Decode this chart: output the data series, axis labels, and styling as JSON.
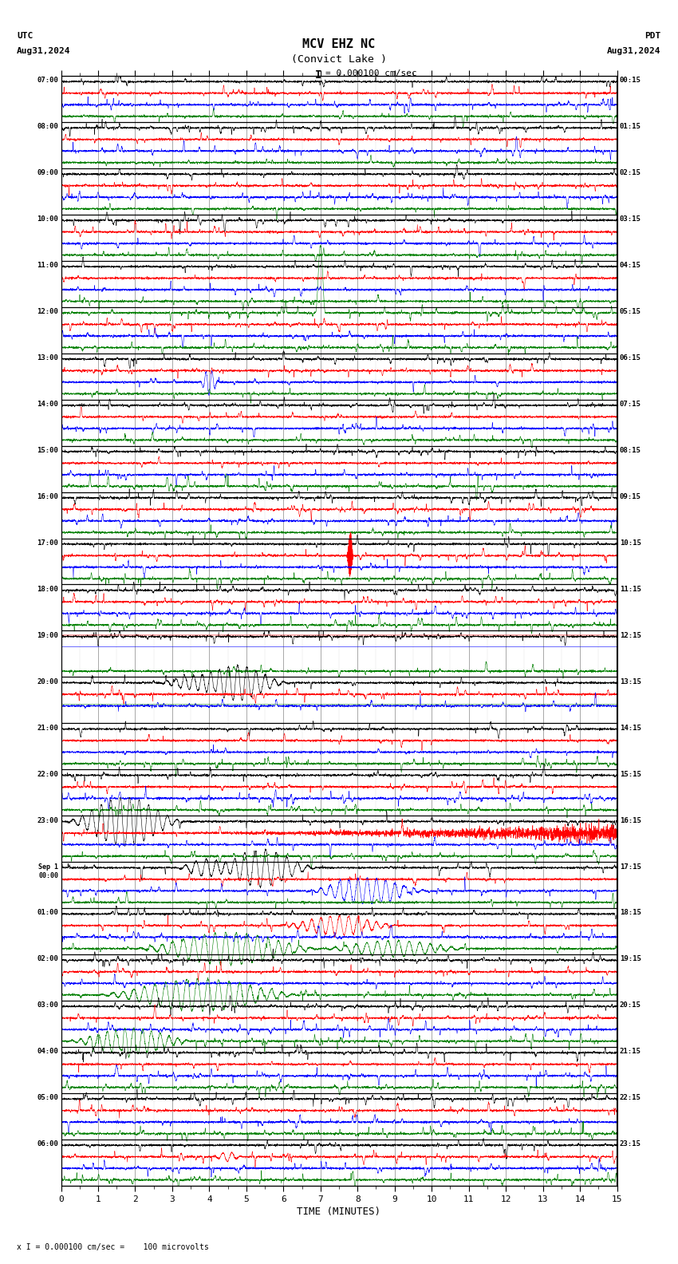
{
  "title_line1": "MCV EHZ NC",
  "title_line2": "(Convict Lake )",
  "scale_label": "= 0.000100 cm/sec",
  "scale_bar_label": "I",
  "utc_label": "UTC",
  "utc_date": "Aug31,2024",
  "pdt_label": "PDT",
  "pdt_date": "Aug31,2024",
  "bottom_note": "x I = 0.000100 cm/sec =    100 microvolts",
  "xlabel": "TIME (MINUTES)",
  "xticks": [
    0,
    1,
    2,
    3,
    4,
    5,
    6,
    7,
    8,
    9,
    10,
    11,
    12,
    13,
    14,
    15
  ],
  "left_times": [
    "07:00",
    "08:00",
    "09:00",
    "10:00",
    "11:00",
    "12:00",
    "13:00",
    "14:00",
    "15:00",
    "16:00",
    "17:00",
    "18:00",
    "19:00",
    "20:00",
    "21:00",
    "22:00",
    "23:00",
    "Sep 1\n00:00",
    "01:00",
    "02:00",
    "03:00",
    "04:00",
    "05:00",
    "06:00"
  ],
  "right_times": [
    "00:15",
    "01:15",
    "02:15",
    "03:15",
    "04:15",
    "05:15",
    "06:15",
    "07:15",
    "08:15",
    "09:15",
    "10:15",
    "11:15",
    "12:15",
    "13:15",
    "14:15",
    "15:15",
    "16:15",
    "17:15",
    "18:15",
    "19:15",
    "20:15",
    "21:15",
    "22:15",
    "23:15"
  ],
  "n_rows": 24,
  "n_sub": 4,
  "bg_color": "#ffffff",
  "trace_colors_per_sub": [
    "black",
    "red",
    "blue",
    "green"
  ],
  "noise_amp": 0.006,
  "minutes": 15.0
}
